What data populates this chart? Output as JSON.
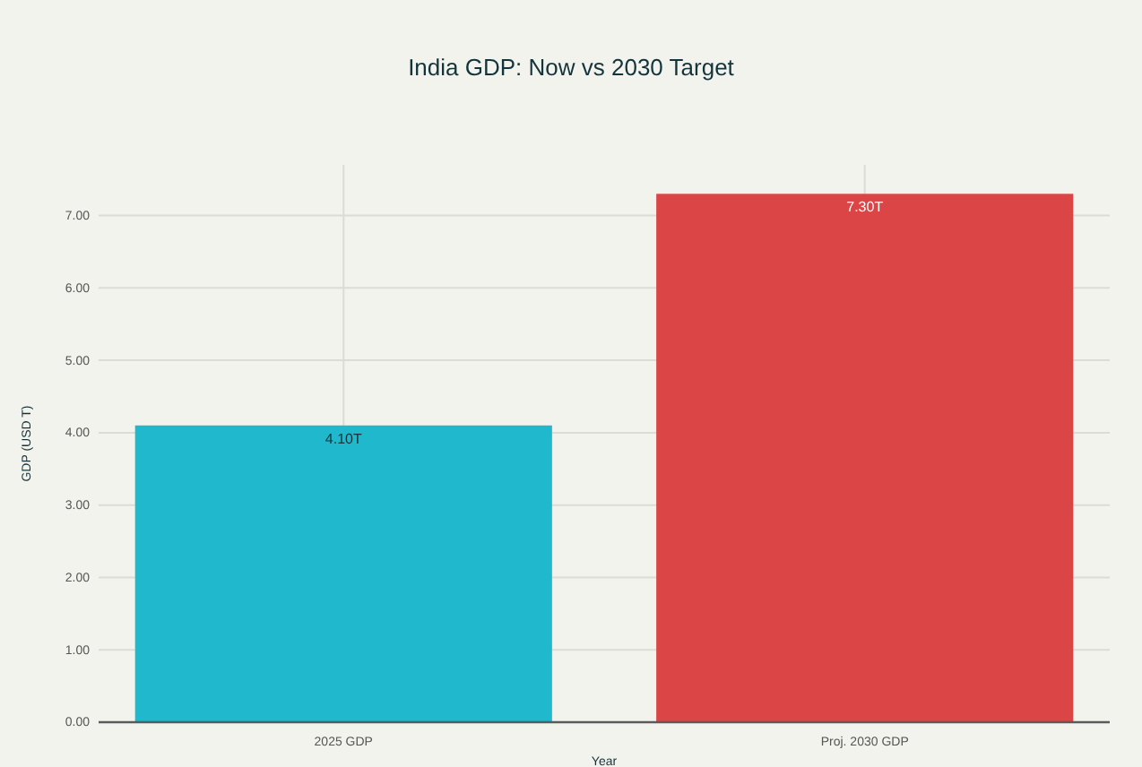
{
  "chart_data": {
    "type": "bar",
    "title": "India GDP: Now vs 2030 Target",
    "xlabel": "Year",
    "ylabel": "GDP (USD T)",
    "categories": [
      "2025 GDP",
      "Proj. 2030 GDP"
    ],
    "values": [
      4.1,
      7.3
    ],
    "colors": [
      "#1fb8cd",
      "#db4545"
    ],
    "value_labels": [
      "4.10T",
      "7.30T"
    ],
    "ylim": [
      0,
      7.7
    ],
    "yticks": [
      {
        "value": 0,
        "label": "0.00"
      },
      {
        "value": 1,
        "label": "1.00"
      },
      {
        "value": 2,
        "label": "2.00"
      },
      {
        "value": 3,
        "label": "3.00"
      },
      {
        "value": 4,
        "label": "4.00"
      },
      {
        "value": 5,
        "label": "5.00"
      },
      {
        "value": 6,
        "label": "6.00"
      },
      {
        "value": 7,
        "label": "7.00"
      }
    ],
    "grid": true
  }
}
